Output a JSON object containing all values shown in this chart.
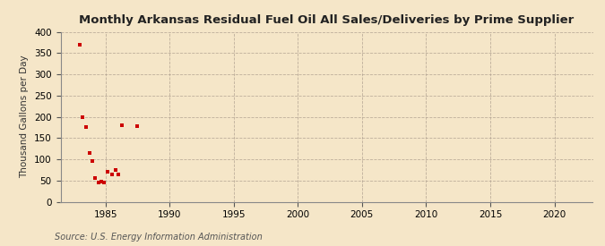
{
  "title": "Monthly Arkansas Residual Fuel Oil All Sales/Deliveries by Prime Supplier",
  "ylabel": "Thousand Gallons per Day",
  "source": "Source: U.S. Energy Information Administration",
  "background_color": "#f5e6c8",
  "plot_bg_color": "#f5e6c8",
  "scatter_color": "#cc0000",
  "xlim": [
    1981.5,
    2023
  ],
  "ylim": [
    0,
    400
  ],
  "xticks": [
    1985,
    1990,
    1995,
    2000,
    2005,
    2010,
    2015,
    2020
  ],
  "yticks": [
    0,
    50,
    100,
    150,
    200,
    250,
    300,
    350,
    400
  ],
  "data_x": [
    1983.0,
    1983.2,
    1983.5,
    1983.8,
    1984.0,
    1984.2,
    1984.5,
    1984.7,
    1984.9,
    1985.2,
    1985.5,
    1985.8,
    1986.0,
    1986.3,
    1987.5
  ],
  "data_y": [
    370,
    200,
    175,
    115,
    95,
    55,
    45,
    48,
    45,
    70,
    65,
    75,
    65,
    180,
    178
  ]
}
